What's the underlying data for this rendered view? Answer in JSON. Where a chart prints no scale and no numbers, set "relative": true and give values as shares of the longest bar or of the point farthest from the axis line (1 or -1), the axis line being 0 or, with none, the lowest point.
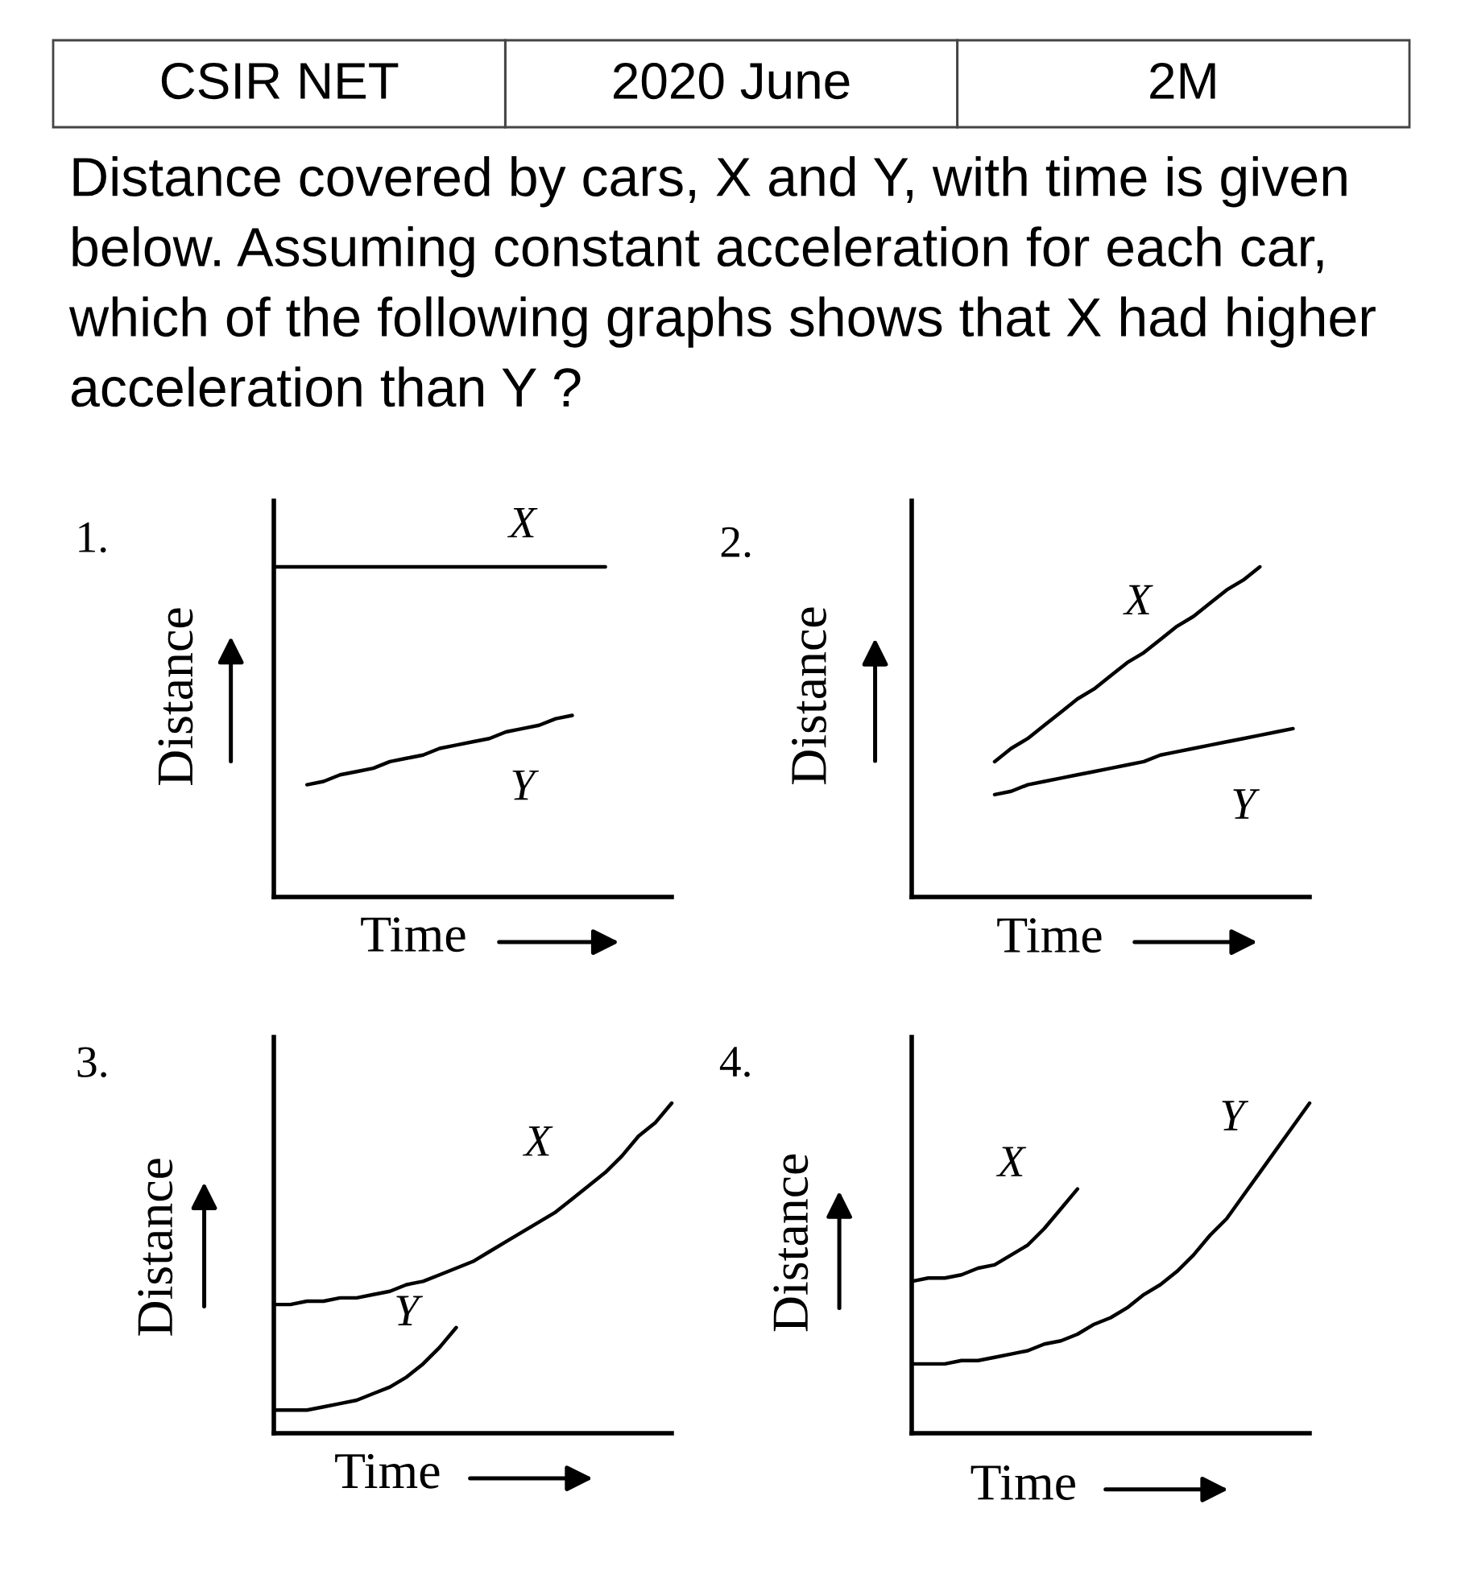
{
  "chart_data": [
    {
      "type": "other",
      "annotations": [
        "CSIR NET",
        "2020 June",
        "2M"
      ],
      "title": "Distance covered by cars, X and Y, with time is given below. Assuming constant acceleration for each car, which of the following graphs shows that X had higher acceleration than Y ?"
    },
    {
      "type": "line",
      "title": "1.",
      "xlabel": "Time",
      "ylabel": "Distance",
      "relative": true,
      "categories": [
        null,
        null,
        null,
        null,
        null,
        null,
        null,
        null,
        null,
        null,
        null,
        null,
        null,
        null,
        null,
        null,
        null,
        null,
        null,
        null,
        null,
        null,
        null,
        null,
        null
      ],
      "series": [
        {
          "name": "X",
          "color": "#000000",
          "values": [
            1,
            1,
            1,
            1,
            1,
            1,
            1,
            1,
            1,
            1,
            1,
            1,
            1,
            1,
            1,
            1,
            1,
            1,
            1,
            1,
            1,
            null,
            null,
            null,
            null
          ]
        },
        {
          "name": "Y",
          "color": "#000000",
          "values": [
            null,
            null,
            0.34,
            0.35,
            0.37,
            0.38,
            0.39,
            0.41,
            0.42,
            0.43,
            0.45,
            0.46,
            0.47,
            0.48,
            0.5,
            0.51,
            0.52,
            0.54,
            0.55,
            null,
            null,
            null,
            null,
            null,
            null
          ]
        }
      ]
    },
    {
      "type": "line",
      "title": "2.",
      "xlabel": "Time",
      "ylabel": "Distance",
      "relative": true,
      "categories": [
        null,
        null,
        null,
        null,
        null,
        null,
        null,
        null,
        null,
        null,
        null,
        null,
        null,
        null,
        null,
        null,
        null,
        null,
        null,
        null,
        null,
        null,
        null,
        null,
        null
      ],
      "series": [
        {
          "name": "X",
          "color": "#000000",
          "values": [
            null,
            null,
            null,
            null,
            null,
            0.41,
            0.45,
            0.48,
            0.52,
            0.56,
            0.6,
            0.63,
            0.67,
            0.71,
            0.74,
            0.78,
            0.82,
            0.85,
            0.89,
            0.93,
            0.96,
            1,
            null,
            null,
            null
          ]
        },
        {
          "name": "Y",
          "color": "#000000",
          "values": [
            null,
            null,
            null,
            null,
            null,
            0.31,
            0.32,
            0.34,
            0.35,
            0.36,
            0.37,
            0.38,
            0.39,
            0.4,
            0.41,
            0.43,
            0.44,
            0.45,
            0.46,
            0.47,
            0.48,
            0.49,
            0.5,
            0.51,
            null
          ]
        }
      ]
    },
    {
      "type": "line",
      "title": "3.",
      "xlabel": "Time",
      "ylabel": "Distance",
      "relative": true,
      "categories": [
        null,
        null,
        null,
        null,
        null,
        null,
        null,
        null,
        null,
        null,
        null,
        null,
        null,
        null,
        null,
        null,
        null,
        null,
        null,
        null,
        null,
        null,
        null,
        null,
        null
      ],
      "series": [
        {
          "name": "X",
          "color": "#000000",
          "values": [
            0.39,
            0.39,
            0.4,
            0.4,
            0.41,
            0.41,
            0.42,
            0.43,
            0.45,
            0.46,
            0.48,
            0.5,
            0.52,
            0.55,
            0.58,
            0.61,
            0.64,
            0.67,
            0.71,
            0.75,
            0.79,
            0.84,
            0.9,
            0.94,
            1
          ]
        },
        {
          "name": "Y",
          "color": "#000000",
          "values": [
            0.07,
            0.07,
            0.07,
            0.08,
            0.09,
            0.1,
            0.12,
            0.14,
            0.17,
            0.21,
            0.26,
            0.32,
            null,
            null,
            null,
            null,
            null,
            null,
            null,
            null,
            null,
            null,
            null,
            null,
            null
          ]
        }
      ]
    },
    {
      "type": "line",
      "title": "4.",
      "xlabel": "Time",
      "ylabel": "Distance",
      "relative": true,
      "categories": [
        null,
        null,
        null,
        null,
        null,
        null,
        null,
        null,
        null,
        null,
        null,
        null,
        null,
        null,
        null,
        null,
        null,
        null,
        null,
        null,
        null,
        null,
        null,
        null,
        null
      ],
      "series": [
        {
          "name": "X",
          "color": "#000000",
          "values": [
            0.46,
            0.47,
            0.47,
            0.48,
            0.5,
            0.51,
            0.54,
            0.57,
            0.62,
            0.68,
            0.74,
            null,
            null,
            null,
            null,
            null,
            null,
            null,
            null,
            null,
            null,
            null,
            null,
            null,
            null
          ]
        },
        {
          "name": "Y",
          "color": "#000000",
          "values": [
            0.21,
            0.21,
            0.21,
            0.22,
            0.22,
            0.23,
            0.24,
            0.25,
            0.27,
            0.28,
            0.3,
            0.33,
            0.35,
            0.38,
            0.42,
            0.45,
            0.49,
            0.54,
            0.6,
            0.65,
            0.72,
            0.79,
            0.86,
            0.93,
            1
          ]
        }
      ]
    }
  ]
}
